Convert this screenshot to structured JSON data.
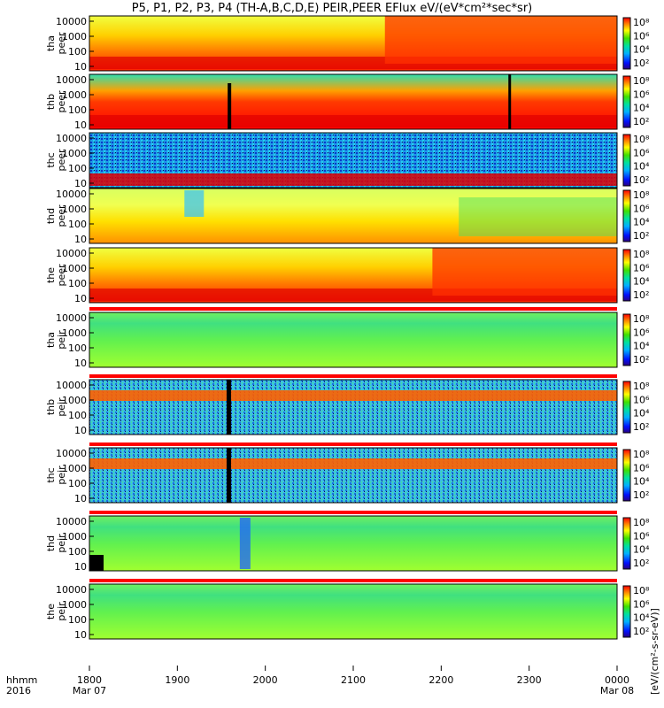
{
  "chart_data": {
    "type": "heatmap",
    "title": "P5, P1, P2, P3, P4 (TH-A,B,C,D,E) PEIR,PEER EFlux eV/(eV*cm²*sec*sr)",
    "colorbar_label": "[eV/(cm²-s-sr-eV)]",
    "x_axis": {
      "row_label_1": "hhmm",
      "row_label_2": "2016",
      "ticks": [
        {
          "value": "1800",
          "date": "Mar 07"
        },
        {
          "value": "1900",
          "date": ""
        },
        {
          "value": "2000",
          "date": ""
        },
        {
          "value": "2100",
          "date": ""
        },
        {
          "value": "2200",
          "date": ""
        },
        {
          "value": "2300",
          "date": ""
        },
        {
          "value": "0000",
          "date": "Mar 08"
        }
      ]
    },
    "y_ticks": [
      "10",
      "100",
      "1000",
      "10000"
    ],
    "colorbar_ticks": [
      "10²",
      "10⁴",
      "10⁶",
      "10⁸"
    ],
    "panels": [
      {
        "probe": "tha",
        "species": "peer",
        "style": "e_hot",
        "mode_bar": false
      },
      {
        "probe": "thb",
        "species": "peer",
        "style": "e_red",
        "mode_bar": false
      },
      {
        "probe": "thc",
        "species": "peer",
        "style": "e_noise",
        "mode_bar": false
      },
      {
        "probe": "thd",
        "species": "peer",
        "style": "e_yellow",
        "mode_bar": false
      },
      {
        "probe": "the",
        "species": "peer",
        "style": "e_hot",
        "mode_bar": false
      },
      {
        "probe": "tha",
        "species": "peir",
        "style": "i_green",
        "mode_bar": true
      },
      {
        "probe": "thb",
        "species": "peir",
        "style": "i_band",
        "mode_bar": true
      },
      {
        "probe": "thc",
        "species": "peir",
        "style": "i_band",
        "mode_bar": true
      },
      {
        "probe": "thd",
        "species": "peir",
        "style": "i_green",
        "mode_bar": true
      },
      {
        "probe": "the",
        "species": "peir",
        "style": "i_green",
        "mode_bar": true
      }
    ]
  }
}
